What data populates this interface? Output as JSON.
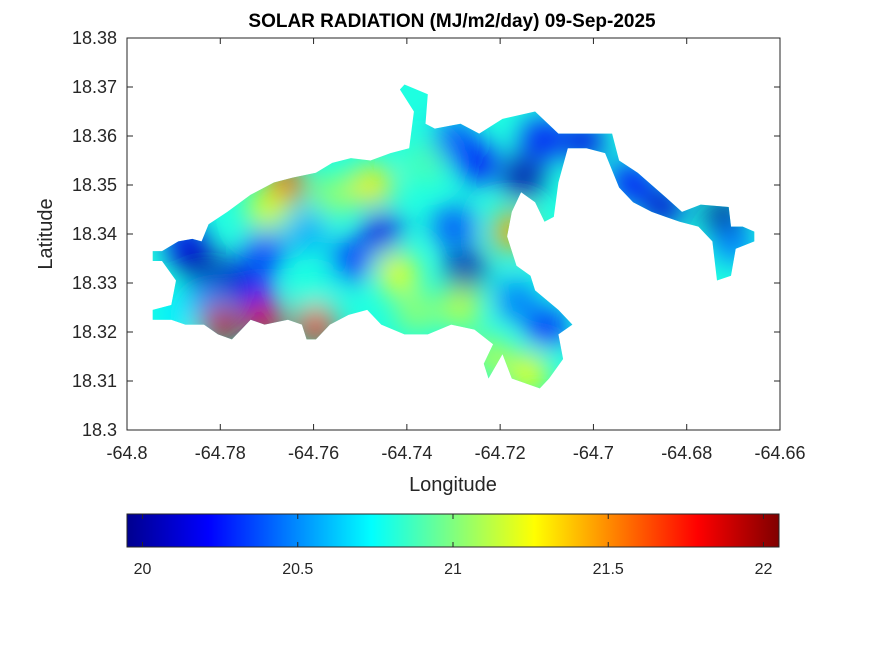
{
  "chart_data": {
    "type": "heatmap",
    "title": "SOLAR RADIATION (MJ/m2/day) 09-Sep-2025",
    "xlabel": "Longitude",
    "ylabel": "Latitude",
    "xlim": [
      -64.8,
      -64.66
    ],
    "ylim": [
      18.3,
      18.38
    ],
    "x_ticks": [
      -64.8,
      -64.78,
      -64.76,
      -64.74,
      -64.72,
      -64.7,
      -64.68,
      -64.66
    ],
    "x_tick_labels": [
      "-64.8",
      "-64.78",
      "-64.76",
      "-64.74",
      "-64.72",
      "-64.7",
      "-64.68",
      "-64.66"
    ],
    "y_ticks": [
      18.3,
      18.31,
      18.32,
      18.33,
      18.34,
      18.35,
      18.36,
      18.37,
      18.38
    ],
    "y_tick_labels": [
      "18.3",
      "18.31",
      "18.32",
      "18.33",
      "18.34",
      "18.35",
      "18.36",
      "18.37",
      "18.38"
    ],
    "grid": false,
    "colormap": "jet",
    "colorbar": {
      "placement": "bottom",
      "range": [
        19.95,
        22.05
      ],
      "ticks": [
        20,
        20.5,
        21,
        21.5,
        22
      ],
      "tick_labels": [
        "20",
        "20.5",
        "21",
        "21.5",
        "22"
      ]
    },
    "land_outline": [
      [
        -64.7925,
        18.3365
      ],
      [
        -64.789,
        18.3385
      ],
      [
        -64.786,
        18.339
      ],
      [
        -64.784,
        18.3385
      ],
      [
        -64.7825,
        18.342
      ],
      [
        -64.7785,
        18.3445
      ],
      [
        -64.7735,
        18.348
      ],
      [
        -64.7685,
        18.3505
      ],
      [
        -64.7645,
        18.3515
      ],
      [
        -64.7595,
        18.3525
      ],
      [
        -64.756,
        18.3545
      ],
      [
        -64.752,
        18.3555
      ],
      [
        -64.7478,
        18.355
      ],
      [
        -64.7435,
        18.3565
      ],
      [
        -64.7395,
        18.3575
      ],
      [
        -64.7385,
        18.365
      ],
      [
        -64.7415,
        18.3695
      ],
      [
        -64.7405,
        18.3705
      ],
      [
        -64.7355,
        18.3685
      ],
      [
        -64.736,
        18.3625
      ],
      [
        -64.734,
        18.3615
      ],
      [
        -64.7285,
        18.3625
      ],
      [
        -64.7245,
        18.3605
      ],
      [
        -64.7195,
        18.3635
      ],
      [
        -64.7125,
        18.365
      ],
      [
        -64.7075,
        18.3605
      ],
      [
        -64.703,
        18.3605
      ],
      [
        -64.696,
        18.3605
      ],
      [
        -64.6945,
        18.355
      ],
      [
        -64.6905,
        18.3525
      ],
      [
        -64.6845,
        18.3475
      ],
      [
        -64.681,
        18.3445
      ],
      [
        -64.677,
        18.346
      ],
      [
        -64.671,
        18.3455
      ],
      [
        -64.6705,
        18.3415
      ],
      [
        -64.668,
        18.3415
      ],
      [
        -64.6655,
        18.3405
      ],
      [
        -64.6655,
        18.3385
      ],
      [
        -64.6695,
        18.337
      ],
      [
        -64.6705,
        18.3315
      ],
      [
        -64.6735,
        18.3305
      ],
      [
        -64.6745,
        18.3385
      ],
      [
        -64.6775,
        18.3415
      ],
      [
        -64.6815,
        18.3425
      ],
      [
        -64.6845,
        18.3435
      ],
      [
        -64.6875,
        18.3445
      ],
      [
        -64.6915,
        18.3465
      ],
      [
        -64.6945,
        18.3495
      ],
      [
        -64.6975,
        18.3565
      ],
      [
        -64.7015,
        18.3575
      ],
      [
        -64.7055,
        18.3575
      ],
      [
        -64.7075,
        18.3505
      ],
      [
        -64.7085,
        18.3435
      ],
      [
        -64.7105,
        18.3425
      ],
      [
        -64.7125,
        18.3465
      ],
      [
        -64.7155,
        18.3485
      ],
      [
        -64.7175,
        18.3445
      ],
      [
        -64.7185,
        18.3395
      ],
      [
        -64.7165,
        18.3335
      ],
      [
        -64.7135,
        18.3315
      ],
      [
        -64.7125,
        18.3285
      ],
      [
        -64.7075,
        18.3245
      ],
      [
        -64.7045,
        18.3215
      ],
      [
        -64.7075,
        18.3195
      ],
      [
        -64.7065,
        18.3145
      ],
      [
        -64.7095,
        18.3105
      ],
      [
        -64.7115,
        18.3085
      ],
      [
        -64.7175,
        18.3105
      ],
      [
        -64.7195,
        18.3155
      ],
      [
        -64.7225,
        18.3105
      ],
      [
        -64.7235,
        18.3135
      ],
      [
        -64.7215,
        18.3175
      ],
      [
        -64.7255,
        18.3205
      ],
      [
        -64.7305,
        18.3215
      ],
      [
        -64.7355,
        18.3195
      ],
      [
        -64.7405,
        18.3195
      ],
      [
        -64.7455,
        18.3215
      ],
      [
        -64.7485,
        18.3245
      ],
      [
        -64.7525,
        18.3235
      ],
      [
        -64.7565,
        18.3215
      ],
      [
        -64.7595,
        18.3185
      ],
      [
        -64.7615,
        18.3185
      ],
      [
        -64.7625,
        18.3215
      ],
      [
        -64.7655,
        18.3225
      ],
      [
        -64.7705,
        18.3215
      ],
      [
        -64.7735,
        18.3225
      ],
      [
        -64.7755,
        18.3205
      ],
      [
        -64.7775,
        18.3185
      ],
      [
        -64.7805,
        18.3195
      ],
      [
        -64.7835,
        18.3215
      ],
      [
        -64.7875,
        18.3215
      ],
      [
        -64.7905,
        18.3225
      ],
      [
        -64.7945,
        18.3225
      ],
      [
        -64.7945,
        18.3245
      ],
      [
        -64.7905,
        18.3255
      ],
      [
        -64.7895,
        18.3305
      ],
      [
        -64.7925,
        18.3345
      ],
      [
        -64.7945,
        18.3345
      ],
      [
        -64.7945,
        18.3365
      ]
    ],
    "hotspots": [
      {
        "lon": -64.7855,
        "lat": 18.3345,
        "value": 19.95
      },
      {
        "lon": -64.778,
        "lat": 18.3305,
        "value": 20.05
      },
      {
        "lon": -64.7875,
        "lat": 18.3385,
        "value": 20.15
      },
      {
        "lon": -64.7705,
        "lat": 18.3365,
        "value": 20.3
      },
      {
        "lon": -64.7725,
        "lat": 18.328,
        "value": 20.25
      },
      {
        "lon": -64.7455,
        "lat": 18.3405,
        "value": 20.15
      },
      {
        "lon": -64.752,
        "lat": 18.3345,
        "value": 20.3
      },
      {
        "lon": -64.7275,
        "lat": 18.3325,
        "value": 20.0
      },
      {
        "lon": -64.73,
        "lat": 18.3415,
        "value": 20.35
      },
      {
        "lon": -64.725,
        "lat": 18.3545,
        "value": 20.2
      },
      {
        "lon": -64.715,
        "lat": 18.3515,
        "value": 20.0
      },
      {
        "lon": -64.73,
        "lat": 18.359,
        "value": 20.3
      },
      {
        "lon": -64.711,
        "lat": 18.3595,
        "value": 20.2
      },
      {
        "lon": -64.702,
        "lat": 18.359,
        "value": 20.15
      },
      {
        "lon": -64.692,
        "lat": 18.3505,
        "value": 20.2
      },
      {
        "lon": -64.685,
        "lat": 18.3455,
        "value": 20.1
      },
      {
        "lon": -64.672,
        "lat": 18.3435,
        "value": 19.95
      },
      {
        "lon": -64.67,
        "lat": 18.338,
        "value": 20.45
      },
      {
        "lon": -64.71,
        "lat": 18.321,
        "value": 20.25
      },
      {
        "lon": -64.7165,
        "lat": 18.3265,
        "value": 20.45
      },
      {
        "lon": -64.7615,
        "lat": 18.3405,
        "value": 20.55
      },
      {
        "lon": -64.783,
        "lat": 18.3265,
        "value": 20.5
      },
      {
        "lon": -64.78,
        "lat": 18.3215,
        "value": 21.9
      },
      {
        "lon": -64.7705,
        "lat": 18.3225,
        "value": 21.85
      },
      {
        "lon": -64.7595,
        "lat": 18.3215,
        "value": 21.75
      },
      {
        "lon": -64.766,
        "lat": 18.35,
        "value": 21.6
      },
      {
        "lon": -64.77,
        "lat": 18.345,
        "value": 21.2
      },
      {
        "lon": -64.7555,
        "lat": 18.348,
        "value": 21.05
      },
      {
        "lon": -64.7475,
        "lat": 18.35,
        "value": 21.3
      },
      {
        "lon": -64.742,
        "lat": 18.332,
        "value": 21.25
      },
      {
        "lon": -64.736,
        "lat": 18.3545,
        "value": 20.9
      },
      {
        "lon": -64.7285,
        "lat": 18.325,
        "value": 21.15
      },
      {
        "lon": -64.7175,
        "lat": 18.3405,
        "value": 21.45
      },
      {
        "lon": -64.738,
        "lat": 18.324,
        "value": 21.05
      },
      {
        "lon": -64.714,
        "lat": 18.3115,
        "value": 21.25
      },
      {
        "lon": -64.722,
        "lat": 18.315,
        "value": 21.1
      },
      {
        "lon": -64.76,
        "lat": 18.329,
        "value": 20.8
      },
      {
        "lon": -64.79,
        "lat": 18.3235,
        "value": 20.7
      }
    ],
    "background_value": 20.8
  }
}
